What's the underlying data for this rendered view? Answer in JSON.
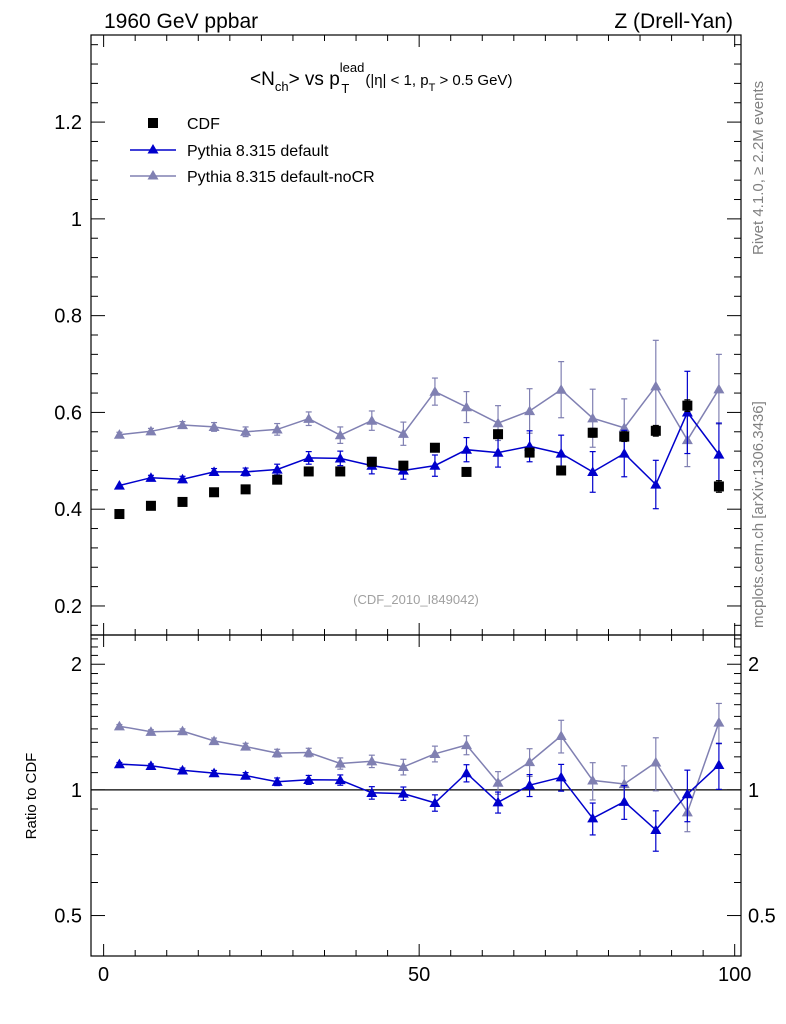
{
  "header": {
    "left": "1960 GeV ppbar",
    "right": "Z (Drell-Yan)"
  },
  "side_labels": {
    "rivet": "Rivet 4.1.0, ≥ 2.2M events",
    "mcplots": "mcplots.cern.ch [arXiv:1306.3436]"
  },
  "chart_data": {
    "type": "scatter",
    "title": {
      "prefix": "<N",
      "sub1": "ch",
      "mid": "> vs p",
      "sup": "lead",
      "sub2": "T",
      "cut1": "(|η| < 1, p",
      "cut_sub": "T",
      "cut2": " > 0.5 GeV)"
    },
    "analysis_id": "(CDF_2010_I849042)",
    "xlabel": "",
    "xlim": [
      -2,
      101
    ],
    "xticks": [
      0,
      50,
      100
    ],
    "main": {
      "ylabel": "",
      "ylim": [
        0.14,
        1.38
      ],
      "yticks": [
        0.2,
        0.4,
        0.6,
        0.8,
        1,
        1.2
      ]
    },
    "ratio": {
      "ylabel": "Ratio to CDF",
      "ylim": [
        0.4,
        2.35
      ],
      "yticks": [
        0.5,
        1,
        2
      ],
      "reference": 1
    },
    "legend": {
      "position": "top-left",
      "entries": [
        "CDF",
        "Pythia 8.315 default",
        "Pythia 8.315 default-noCR"
      ]
    },
    "x": [
      2.5,
      7.5,
      12.5,
      17.5,
      22.5,
      27.5,
      32.5,
      37.5,
      42.5,
      47.5,
      52.5,
      57.5,
      62.5,
      67.5,
      72.5,
      77.5,
      82.5,
      87.5,
      92.5,
      97.5
    ],
    "series": [
      {
        "name": "CDF",
        "color": "#000000",
        "marker": "square",
        "values": [
          0.39,
          0.407,
          0.415,
          0.435,
          0.441,
          0.461,
          0.478,
          0.478,
          0.498,
          0.49,
          0.527,
          0.477,
          0.555,
          0.517,
          0.48,
          0.558,
          0.55,
          0.562,
          0.614,
          0.447
        ],
        "errors": [
          0.004,
          0.004,
          0.004,
          0.004,
          0.005,
          0.005,
          0.005,
          0.006,
          0.006,
          0.006,
          0.007,
          0.007,
          0.008,
          0.008,
          0.009,
          0.009,
          0.01,
          0.011,
          0.012,
          0.012
        ]
      },
      {
        "name": "Pythia 8.315 default",
        "color": "#0000cc",
        "marker": "triangle",
        "values": [
          0.449,
          0.465,
          0.462,
          0.477,
          0.477,
          0.482,
          0.506,
          0.505,
          0.49,
          0.48,
          0.49,
          0.523,
          0.517,
          0.53,
          0.515,
          0.477,
          0.515,
          0.451,
          0.6,
          0.513
        ],
        "errors": [
          0.004,
          0.005,
          0.006,
          0.007,
          0.008,
          0.011,
          0.013,
          0.015,
          0.017,
          0.018,
          0.022,
          0.025,
          0.03,
          0.032,
          0.038,
          0.042,
          0.048,
          0.05,
          0.085,
          0.065
        ]
      },
      {
        "name": "Pythia 8.315 default-noCR",
        "color": "#8080b2",
        "marker": "triangle",
        "values": [
          0.554,
          0.561,
          0.574,
          0.57,
          0.56,
          0.565,
          0.587,
          0.553,
          0.583,
          0.556,
          0.643,
          0.611,
          0.578,
          0.603,
          0.647,
          0.588,
          0.568,
          0.654,
          0.543,
          0.648
        ],
        "errors": [
          0.005,
          0.006,
          0.007,
          0.009,
          0.01,
          0.012,
          0.014,
          0.017,
          0.02,
          0.024,
          0.028,
          0.032,
          0.036,
          0.046,
          0.058,
          0.06,
          0.06,
          0.095,
          0.055,
          0.072
        ]
      }
    ],
    "ratio_series": [
      {
        "name": "Pythia 8.315 default",
        "color": "#0000cc",
        "values": [
          1.153,
          1.142,
          1.114,
          1.097,
          1.082,
          1.046,
          1.057,
          1.056,
          0.984,
          0.98,
          0.931,
          1.097,
          0.934,
          1.026,
          1.072,
          0.855,
          0.937,
          0.802,
          0.977,
          1.148
        ],
        "errors": [
          0.01,
          0.012,
          0.014,
          0.016,
          0.018,
          0.022,
          0.026,
          0.03,
          0.034,
          0.036,
          0.042,
          0.052,
          0.054,
          0.062,
          0.079,
          0.075,
          0.087,
          0.089,
          0.138,
          0.145
        ]
      },
      {
        "name": "Pythia 8.315 default-noCR",
        "color": "#8080b2",
        "values": [
          1.421,
          1.378,
          1.383,
          1.31,
          1.27,
          1.225,
          1.229,
          1.157,
          1.171,
          1.135,
          1.22,
          1.281,
          1.041,
          1.166,
          1.347,
          1.054,
          1.033,
          1.164,
          0.884,
          1.45
        ],
        "errors": [
          0.013,
          0.015,
          0.017,
          0.021,
          0.023,
          0.026,
          0.029,
          0.036,
          0.04,
          0.049,
          0.053,
          0.067,
          0.065,
          0.089,
          0.121,
          0.108,
          0.109,
          0.169,
          0.09,
          0.161
        ]
      }
    ]
  }
}
